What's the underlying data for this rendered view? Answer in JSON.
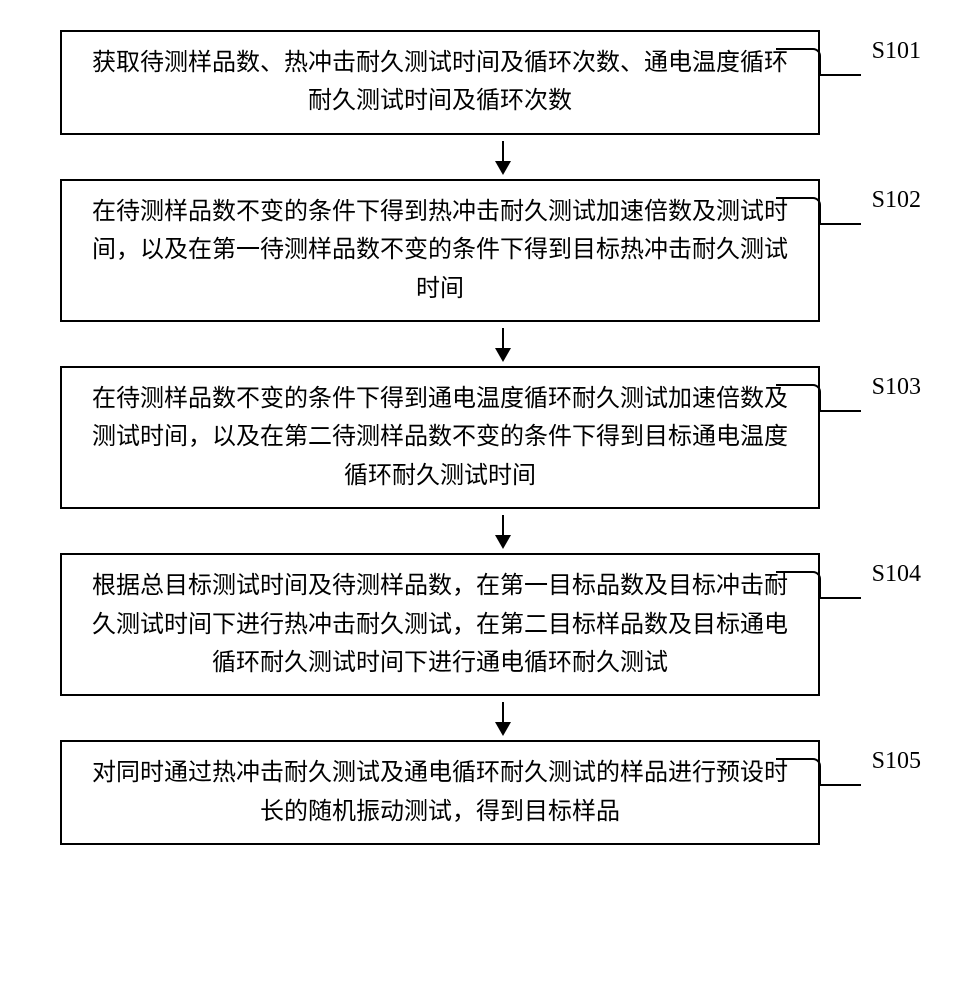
{
  "flowchart": {
    "type": "flowchart",
    "background_color": "#ffffff",
    "box_border_color": "#000000",
    "box_border_width": 2,
    "arrow_color": "#000000",
    "font_family": "SimSun",
    "font_size": 24,
    "steps": [
      {
        "id": "S101",
        "text": "获取待测样品数、热冲击耐久测试时间及循环次数、通电温度循环耐久测试时间及循环次数"
      },
      {
        "id": "S102",
        "text": "在待测样品数不变的条件下得到热冲击耐久测试加速倍数及测试时间，以及在第一待测样品数不变的条件下得到目标热冲击耐久测试时间"
      },
      {
        "id": "S103",
        "text": "在待测样品数不变的条件下得到通电温度循环耐久测试加速倍数及测试时间，以及在第二待测样品数不变的条件下得到目标通电温度循环耐久测试时间"
      },
      {
        "id": "S104",
        "text": "根据总目标测试时间及待测样品数，在第一目标品数及目标冲击耐久测试时间下进行热冲击耐久测试，在第二目标样品数及目标通电循环耐久测试时间下进行通电循环耐久测试"
      },
      {
        "id": "S105",
        "text": "对同时通过热冲击耐久测试及通电循环耐久测试的样品进行预设时长的随机振动测试，得到目标样品"
      }
    ]
  }
}
